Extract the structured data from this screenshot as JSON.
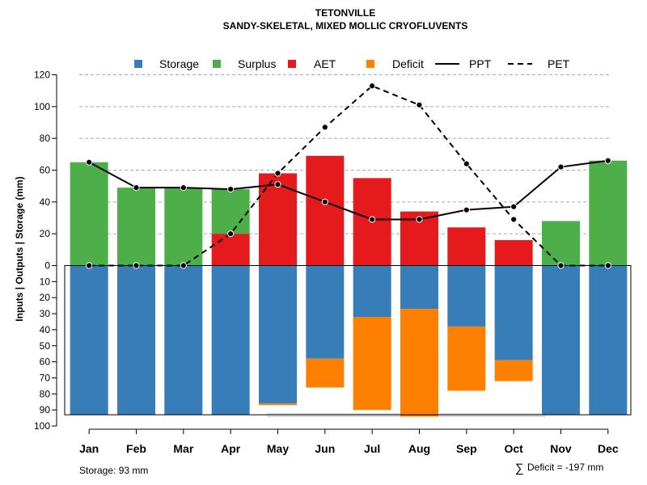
{
  "chart_data": {
    "type": "bar",
    "title": "TETONVILLE",
    "subtitle": "SANDY-SKELETAL, MIXED MOLLIC CRYOFLUVENTS",
    "ylabel": "Inputs | Outputs | Storage    (mm)",
    "ylim_top": [
      0,
      120
    ],
    "ylim_bottom": [
      0,
      100
    ],
    "yticks_top": [
      0,
      20,
      40,
      60,
      80,
      100,
      120
    ],
    "yticks_bottom": [
      10,
      20,
      30,
      40,
      50,
      60,
      70,
      80,
      90,
      100
    ],
    "categories": [
      "Jan",
      "Feb",
      "Mar",
      "Apr",
      "May",
      "Jun",
      "Jul",
      "Aug",
      "Sep",
      "Oct",
      "Nov",
      "Dec"
    ],
    "storage_capacity": 93,
    "series": [
      {
        "name": "Storage",
        "color": "#377EB8",
        "values": [
          93,
          93,
          93,
          93,
          86,
          58,
          32,
          27,
          38,
          59,
          93,
          93
        ]
      },
      {
        "name": "Surplus",
        "color": "#4DAF4A",
        "values": [
          65,
          49,
          49,
          28,
          0,
          0,
          0,
          0,
          0,
          0,
          28,
          66
        ]
      },
      {
        "name": "AET",
        "color": "#E41A1C",
        "values": [
          0,
          0,
          0,
          20,
          58,
          69,
          55,
          34,
          24,
          16,
          0,
          0
        ]
      },
      {
        "name": "Deficit",
        "color": "#FF7F00",
        "values": [
          0,
          0,
          0,
          0,
          1,
          18,
          58,
          67,
          40,
          13,
          0,
          0
        ]
      },
      {
        "name": "PPT",
        "color": "#000000",
        "style": "solid",
        "values": [
          65,
          49,
          49,
          48,
          51,
          40,
          29,
          29,
          35,
          37,
          62,
          66
        ]
      },
      {
        "name": "PET",
        "color": "#000000",
        "style": "dashed",
        "values": [
          0,
          0,
          0,
          20,
          58,
          87,
          113,
          101,
          64,
          29,
          0,
          0
        ]
      }
    ],
    "legend": [
      "Storage",
      "Surplus",
      "AET",
      "Deficit",
      "PPT",
      "PET"
    ],
    "legend_position": "top",
    "grid": true
  },
  "footer": {
    "storage_text": "Storage: 93 mm",
    "deficit_symbol": "∑",
    "deficit_text": "Deficit = -197 mm"
  }
}
